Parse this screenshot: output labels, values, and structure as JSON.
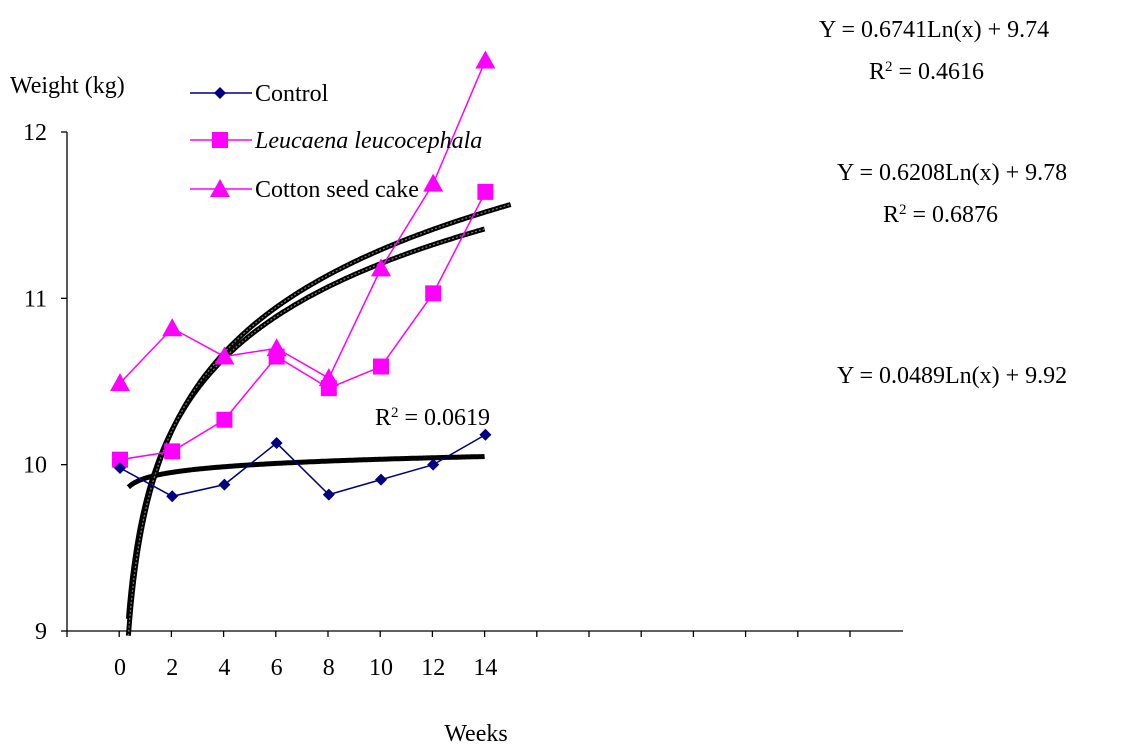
{
  "chart_data": {
    "type": "line",
    "title": "",
    "xlabel": "Weeks",
    "ylabel": "Weight (kg)",
    "xlim": [
      0,
      14
    ],
    "ylim": [
      9,
      12
    ],
    "x_ticks": [
      "0",
      "2",
      "4",
      "6",
      "8",
      "10",
      "12",
      "14"
    ],
    "y_ticks": [
      "9",
      "10",
      "11",
      "12"
    ],
    "x": [
      0,
      2,
      4,
      6,
      8,
      10,
      12,
      14
    ],
    "grid": false,
    "legend_position": "top-left",
    "series": [
      {
        "name": "Control",
        "italic": false,
        "marker": "diamond",
        "color": "#000080",
        "values": [
          9.98,
          9.81,
          9.88,
          10.13,
          9.82,
          9.91,
          10.0,
          10.18
        ],
        "trendline": {
          "a": 0.0489,
          "b": 9.92,
          "equation": "Y = 0.0489Ln(x) + 9.92",
          "r2": "R2 = 0.0619"
        }
      },
      {
        "name": "Leucaena leucocephala",
        "italic": true,
        "marker": "square",
        "color": "#ff00ff",
        "values": [
          10.03,
          10.08,
          10.27,
          10.65,
          10.46,
          10.59,
          11.03,
          11.64
        ],
        "trendline": {
          "a": 0.6208,
          "b": 9.78,
          "equation": "Y = 0.6208Ln(x) + 9.78",
          "r2": "R2 = 0.6876"
        }
      },
      {
        "name": "Cotton seed cake",
        "italic": false,
        "marker": "triangle",
        "color": "#ff00ff",
        "values": [
          10.49,
          10.82,
          10.65,
          10.7,
          10.52,
          11.18,
          11.69,
          12.43
        ],
        "trendline": {
          "a": 0.6741,
          "b": 9.74,
          "equation": "Y = 0.6741Ln(x) + 9.74",
          "r2": "R2 = 0.4616"
        }
      }
    ]
  }
}
